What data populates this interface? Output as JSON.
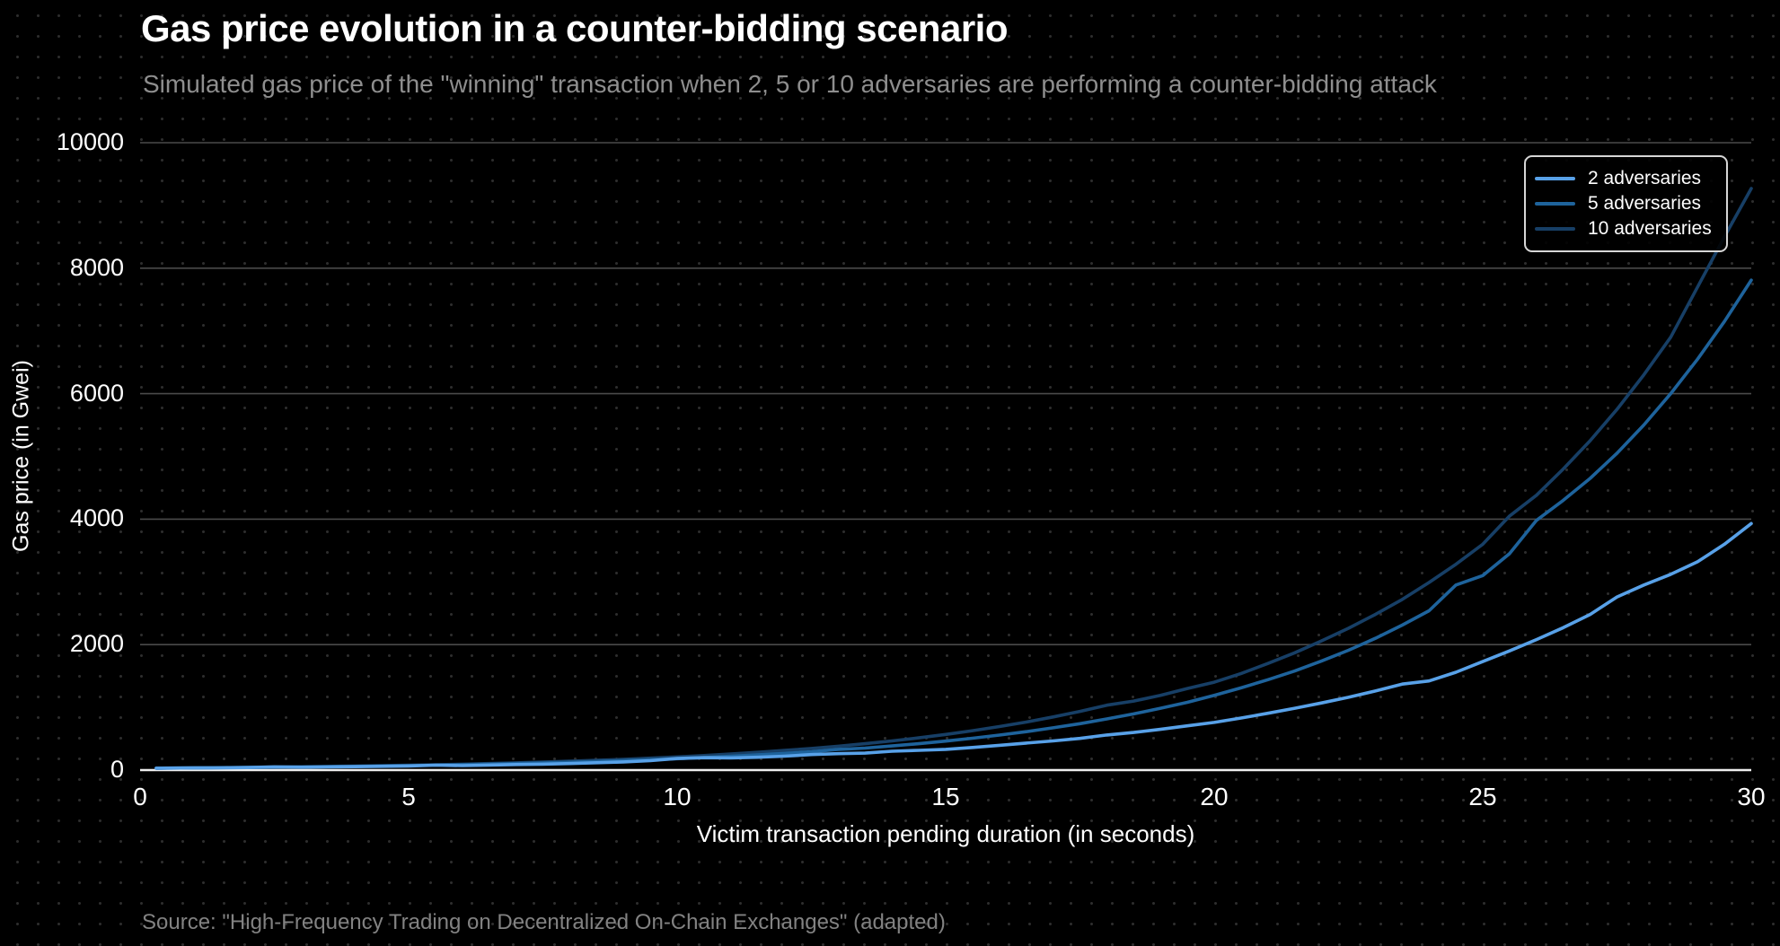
{
  "header": {
    "title": "Gas price evolution in a counter-bidding scenario",
    "subtitle": "Simulated gas price of the \"winning\" transaction when 2, 5 or 10 adversaries are performing a counter-bidding attack"
  },
  "footer": {
    "source": "Source: \"High-Frequency Trading on Decentralized On-Chain Exchanges\" (adapted)"
  },
  "colors": {
    "background": "#000000",
    "dot_grid": "#2d2d2d",
    "gridline": "#4a4a4a",
    "baseline": "#eeeeee",
    "title_text": "#ffffff",
    "subtitle_text": "#8e8e8e",
    "source_text": "#828282"
  },
  "chart_data": {
    "type": "line",
    "title": "Gas price evolution in a counter-bidding scenario",
    "subtitle": "Simulated gas price of the \"winning\" transaction when 2, 5 or 10 adversaries are performing a counter-bidding attack",
    "xlabel": "Victim transaction pending duration (in seconds)",
    "ylabel": "Gas price (in Gwei)",
    "xlim": [
      0,
      30
    ],
    "ylim": [
      0,
      10000
    ],
    "x_ticks": [
      0,
      5,
      10,
      15,
      20,
      25,
      30
    ],
    "y_ticks": [
      0,
      2000,
      4000,
      6000,
      8000,
      10000
    ],
    "grid": "horizontal",
    "legend_position": "top-right",
    "x": [
      0.3,
      0.5,
      1,
      1.5,
      2,
      2.5,
      3,
      3.5,
      4,
      4.5,
      5,
      5.5,
      6,
      6.5,
      7,
      7.5,
      8,
      8.5,
      9,
      9.5,
      10,
      10.5,
      11,
      11.5,
      12,
      12.5,
      13,
      13.5,
      14,
      14.5,
      15,
      15.5,
      16,
      16.5,
      17,
      17.5,
      18,
      18.5,
      19,
      19.5,
      20,
      20.5,
      21,
      21.5,
      22,
      22.5,
      23,
      23.5,
      24,
      24.5,
      25,
      25.5,
      26,
      26.5,
      27,
      27.5,
      28,
      28.5,
      29,
      29.5,
      30
    ],
    "series": [
      {
        "name": "2 adversaries",
        "color": "#58a1e8",
        "values": [
          30,
          32,
          34,
          36,
          40,
          52,
          46,
          50,
          55,
          60,
          66,
          78,
          72,
          80,
          88,
          95,
          104,
          118,
          130,
          150,
          185,
          198,
          195,
          205,
          222,
          248,
          262,
          270,
          300,
          315,
          330,
          360,
          395,
          430,
          465,
          505,
          560,
          600,
          650,
          705,
          760,
          830,
          905,
          985,
          1070,
          1160,
          1260,
          1370,
          1420,
          1560,
          1730,
          1900,
          2080,
          2270,
          2480,
          2760,
          2950,
          3120,
          3320,
          3600,
          3930
        ]
      },
      {
        "name": "5 adversaries",
        "color": "#1e639c",
        "values": [
          30,
          32,
          35,
          38,
          42,
          46,
          50,
          55,
          60,
          66,
          72,
          79,
          87,
          95,
          104,
          114,
          125,
          138,
          151,
          166,
          182,
          200,
          220,
          242,
          266,
          292,
          330,
          350,
          385,
          420,
          462,
          508,
          558,
          613,
          674,
          740,
          815,
          895,
          985,
          1080,
          1190,
          1310,
          1440,
          1580,
          1740,
          1910,
          2100,
          2310,
          2540,
          2950,
          3100,
          3450,
          3980,
          4300,
          4650,
          5050,
          5500,
          6000,
          6550,
          7150,
          7810
        ]
      },
      {
        "name": "10 adversaries",
        "color": "#173f66",
        "values": [
          30,
          33,
          36,
          40,
          44,
          48,
          53,
          58,
          64,
          71,
          78,
          86,
          95,
          105,
          116,
          128,
          141,
          156,
          172,
          190,
          210,
          232,
          256,
          283,
          313,
          345,
          381,
          421,
          465,
          514,
          568,
          628,
          694,
          766,
          847,
          936,
          1034,
          1100,
          1190,
          1300,
          1400,
          1540,
          1700,
          1870,
          2060,
          2260,
          2480,
          2720,
          2990,
          3280,
          3600,
          4050,
          4380,
          4800,
          5250,
          5750,
          6300,
          6900,
          7700,
          8500,
          9270
        ]
      }
    ]
  }
}
